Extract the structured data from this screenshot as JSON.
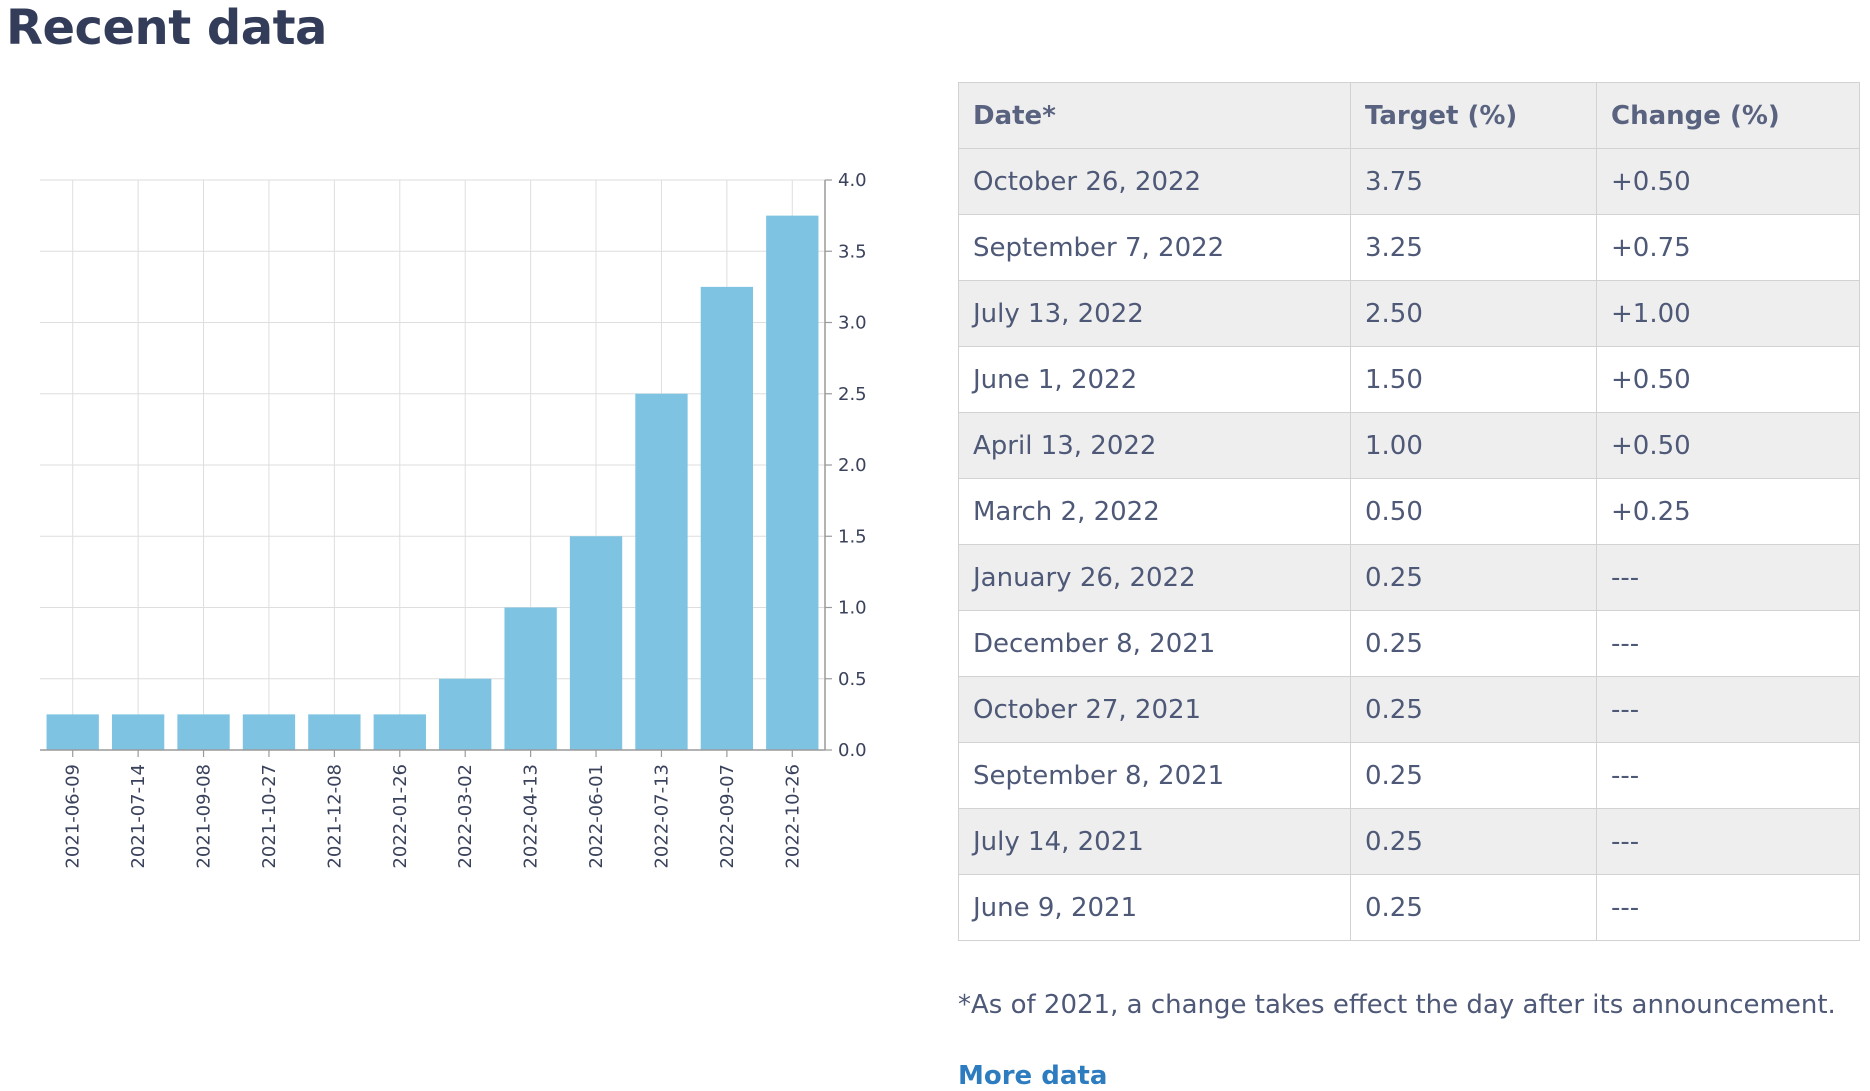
{
  "page": {
    "title": "Recent data"
  },
  "colors": {
    "bar": "#7ec4e2",
    "link": "#2d7cc0",
    "title": "#333d5a"
  },
  "chart_data": {
    "type": "bar",
    "categories": [
      "2021-06-09",
      "2021-07-14",
      "2021-09-08",
      "2021-10-27",
      "2021-12-08",
      "2022-01-26",
      "2022-03-02",
      "2022-04-13",
      "2022-06-01",
      "2022-07-13",
      "2022-09-07",
      "2022-10-26"
    ],
    "values": [
      0.25,
      0.25,
      0.25,
      0.25,
      0.25,
      0.25,
      0.5,
      1.0,
      1.5,
      2.5,
      3.25,
      3.75
    ],
    "y_ticks": [
      "0.0",
      "0.5",
      "1.0",
      "1.5",
      "2.0",
      "2.5",
      "3.0",
      "3.5",
      "4.0"
    ],
    "ylim": [
      0,
      4.0
    ],
    "y_axis_side": "right",
    "title": "",
    "xlabel": "",
    "ylabel": "",
    "grid": true
  },
  "table": {
    "headers": [
      "Date*",
      "Target (%)",
      "Change (%)"
    ],
    "rows": [
      [
        "October 26, 2022",
        "3.75",
        "+0.50"
      ],
      [
        "September 7, 2022",
        "3.25",
        "+0.75"
      ],
      [
        "July 13, 2022",
        "2.50",
        "+1.00"
      ],
      [
        "June 1, 2022",
        "1.50",
        "+0.50"
      ],
      [
        "April 13, 2022",
        "1.00",
        "+0.50"
      ],
      [
        "March 2, 2022",
        "0.50",
        "+0.25"
      ],
      [
        "January 26, 2022",
        "0.25",
        "---"
      ],
      [
        "December 8, 2021",
        "0.25",
        "---"
      ],
      [
        "October 27, 2021",
        "0.25",
        "---"
      ],
      [
        "September 8, 2021",
        "0.25",
        "---"
      ],
      [
        "July 14, 2021",
        "0.25",
        "---"
      ],
      [
        "June 9, 2021",
        "0.25",
        "---"
      ]
    ]
  },
  "footnote": "*As of 2021, a change takes effect the day after its announcement.",
  "more_link": "More data"
}
